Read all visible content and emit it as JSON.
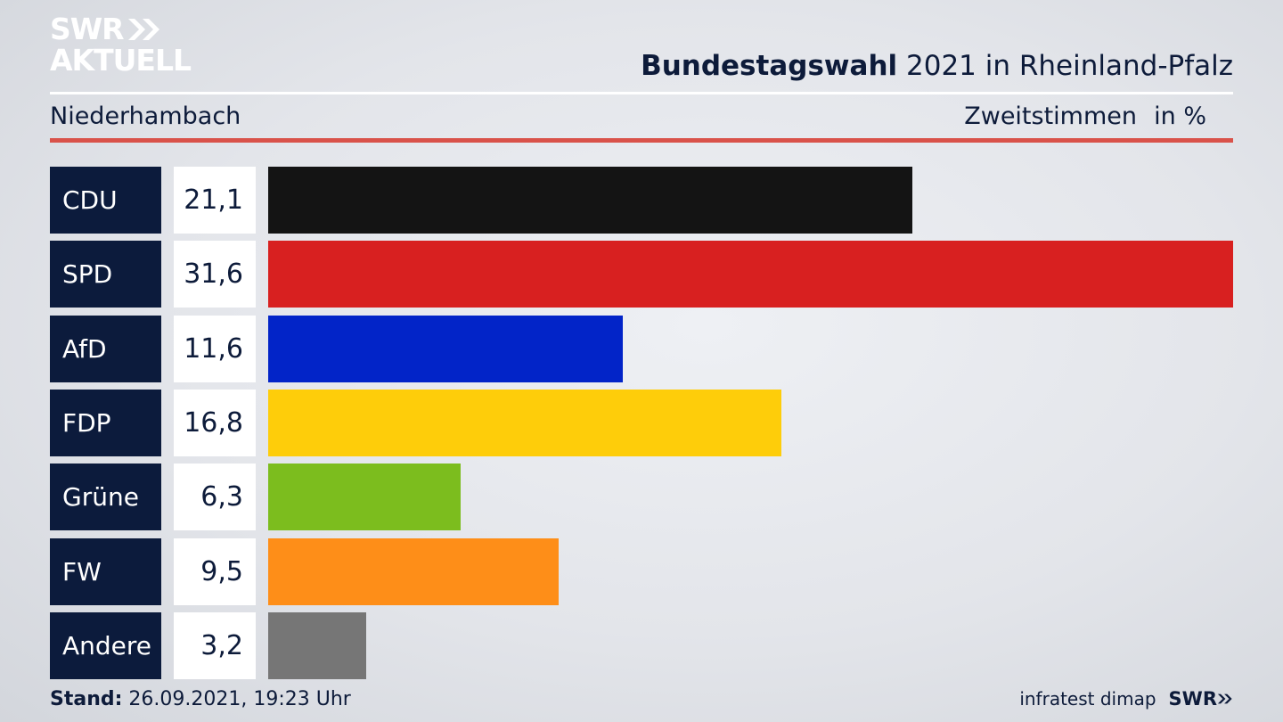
{
  "logo": {
    "line1": "SWR",
    "line2": "AKTUELL"
  },
  "header": {
    "title_bold": "Bundestagswahl",
    "title_rest": " 2021 in Rheinland-Pfalz",
    "region": "Niederhambach",
    "vote_type": "Zweitstimmen",
    "unit": "in %"
  },
  "chart_data": {
    "type": "bar",
    "orientation": "horizontal",
    "categories": [
      "CDU",
      "SPD",
      "AfD",
      "FDP",
      "Grüne",
      "FW",
      "Andere"
    ],
    "values": [
      21.1,
      31.6,
      11.6,
      16.8,
      6.3,
      9.5,
      3.2
    ],
    "value_labels": [
      "21,1",
      "31,6",
      "11,6",
      "16,8",
      "6,3",
      "9,5",
      "3,2"
    ],
    "colors": [
      "#141414",
      "#d82020",
      "#0224c8",
      "#fecd0a",
      "#7cbd1e",
      "#fe8e18",
      "#767676"
    ],
    "ylabel": "in %"
  },
  "footer": {
    "stand_label": "Stand:",
    "stand_value": " 26.09.2021, 19:23 Uhr",
    "source": "infratest dimap",
    "brand": "SWR"
  }
}
